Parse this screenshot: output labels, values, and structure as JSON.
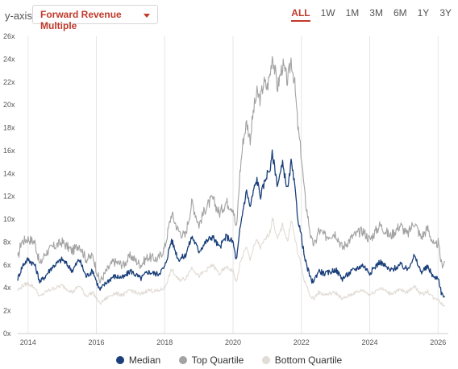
{
  "header": {
    "yaxis_label": "y-axis:",
    "metric_select": {
      "value": "Forward Revenue Multiple",
      "icon": "caret-down-icon"
    },
    "ranges": [
      "ALL",
      "1W",
      "1M",
      "3M",
      "6M",
      "1Y",
      "3Y"
    ],
    "active_range": "ALL"
  },
  "chart_data": {
    "type": "line",
    "title": "",
    "xlabel": "",
    "ylabel": "",
    "ylim": [
      0,
      26
    ],
    "xlim": [
      2013.7,
      2026.3
    ],
    "y_ticks": [
      0,
      2,
      4,
      6,
      8,
      10,
      12,
      14,
      16,
      18,
      20,
      22,
      24,
      26
    ],
    "y_tick_labels": [
      "0x",
      "2x",
      "4x",
      "6x",
      "8x",
      "10x",
      "12x",
      "14x",
      "16x",
      "18x",
      "20x",
      "22x",
      "24x",
      "26x"
    ],
    "x_ticks": [
      2014,
      2016,
      2018,
      2020,
      2022,
      2024,
      2026
    ],
    "x_tick_labels": [
      "2014",
      "2016",
      "2018",
      "2020",
      "2022",
      "2024",
      "2026"
    ],
    "grid": "vertical",
    "legend_position": "bottom",
    "series": [
      {
        "name": "Top Quartile",
        "color": "#a3a3a3",
        "x": [
          2013.7,
          2013.8,
          2014.0,
          2014.2,
          2014.35,
          2014.5,
          2014.7,
          2015.0,
          2015.3,
          2015.5,
          2015.7,
          2015.9,
          2016.0,
          2016.1,
          2016.3,
          2016.5,
          2016.8,
          2017.0,
          2017.3,
          2017.5,
          2017.8,
          2018.0,
          2018.2,
          2018.4,
          2018.6,
          2018.8,
          2019.0,
          2019.2,
          2019.4,
          2019.6,
          2019.8,
          2020.0,
          2020.1,
          2020.2,
          2020.3,
          2020.4,
          2020.5,
          2020.6,
          2020.7,
          2020.8,
          2020.9,
          2021.0,
          2021.1,
          2021.15,
          2021.3,
          2021.45,
          2021.6,
          2021.7,
          2021.8,
          2021.9,
          2022.0,
          2022.1,
          2022.2,
          2022.3,
          2022.4,
          2022.5,
          2022.7,
          2023.0,
          2023.2,
          2023.5,
          2023.8,
          2024.0,
          2024.3,
          2024.6,
          2024.9,
          2025.1,
          2025.3,
          2025.5,
          2025.7,
          2025.9,
          2026.0,
          2026.1,
          2026.2
        ],
        "y": [
          6.5,
          8.0,
          8.3,
          8.0,
          6.0,
          7.0,
          7.5,
          8.0,
          7.2,
          7.8,
          6.5,
          6.8,
          5.6,
          4.5,
          5.5,
          6.3,
          6.0,
          6.8,
          6.0,
          6.7,
          6.5,
          7.5,
          10.5,
          9.0,
          8.5,
          11.5,
          9.5,
          11.0,
          11.8,
          10.5,
          11.5,
          11.0,
          9.0,
          14.0,
          17.0,
          18.5,
          17.0,
          19.5,
          21.0,
          20.5,
          22.0,
          21.5,
          23.0,
          24.5,
          21.5,
          23.5,
          22.0,
          24.0,
          22.0,
          18.0,
          15.5,
          12.0,
          10.0,
          8.0,
          7.8,
          9.0,
          8.5,
          8.8,
          7.5,
          8.5,
          9.0,
          8.2,
          9.5,
          8.5,
          9.5,
          8.6,
          9.8,
          8.4,
          9.2,
          7.5,
          8.0,
          6.0,
          6.3
        ]
      },
      {
        "name": "Median",
        "color": "#1a3f7a",
        "x": [
          2013.7,
          2013.85,
          2014.0,
          2014.2,
          2014.35,
          2014.5,
          2014.7,
          2015.0,
          2015.3,
          2015.5,
          2015.7,
          2015.9,
          2016.0,
          2016.1,
          2016.3,
          2016.5,
          2016.8,
          2017.0,
          2017.3,
          2017.5,
          2017.8,
          2018.0,
          2018.2,
          2018.4,
          2018.6,
          2018.8,
          2019.0,
          2019.2,
          2019.4,
          2019.6,
          2019.8,
          2020.0,
          2020.1,
          2020.2,
          2020.3,
          2020.4,
          2020.5,
          2020.6,
          2020.7,
          2020.8,
          2020.9,
          2021.0,
          2021.1,
          2021.15,
          2021.3,
          2021.45,
          2021.6,
          2021.7,
          2021.8,
          2021.9,
          2022.0,
          2022.1,
          2022.2,
          2022.3,
          2022.4,
          2022.5,
          2022.7,
          2023.0,
          2023.2,
          2023.5,
          2023.8,
          2024.0,
          2024.3,
          2024.6,
          2024.9,
          2025.1,
          2025.3,
          2025.5,
          2025.7,
          2025.9,
          2026.0,
          2026.1,
          2026.2
        ],
        "y": [
          4.8,
          6.0,
          6.5,
          6.0,
          4.5,
          5.0,
          5.8,
          6.5,
          5.5,
          6.5,
          5.0,
          5.5,
          4.6,
          3.8,
          4.5,
          5.0,
          4.9,
          5.5,
          4.8,
          5.4,
          5.2,
          5.8,
          8.2,
          6.5,
          6.8,
          8.5,
          7.2,
          8.0,
          8.5,
          7.5,
          8.5,
          8.0,
          6.3,
          9.0,
          11.0,
          12.5,
          11.0,
          12.5,
          13.5,
          12.0,
          13.0,
          14.0,
          14.5,
          15.8,
          13.0,
          14.8,
          12.5,
          15.0,
          13.0,
          10.0,
          8.5,
          6.5,
          5.5,
          4.5,
          4.8,
          5.5,
          5.2,
          5.6,
          4.8,
          5.5,
          6.0,
          5.3,
          6.3,
          5.5,
          6.0,
          5.6,
          6.8,
          5.4,
          5.8,
          4.8,
          5.0,
          3.5,
          3.2
        ]
      },
      {
        "name": "Bottom Quartile",
        "color": "#e2dcd6",
        "x": [
          2013.7,
          2013.85,
          2014.0,
          2014.2,
          2014.35,
          2014.5,
          2014.7,
          2015.0,
          2015.3,
          2015.5,
          2015.7,
          2015.9,
          2016.0,
          2016.1,
          2016.3,
          2016.5,
          2016.8,
          2017.0,
          2017.3,
          2017.5,
          2017.8,
          2018.0,
          2018.2,
          2018.4,
          2018.6,
          2018.8,
          2019.0,
          2019.2,
          2019.4,
          2019.6,
          2019.8,
          2020.0,
          2020.1,
          2020.2,
          2020.3,
          2020.4,
          2020.5,
          2020.6,
          2020.7,
          2020.8,
          2020.9,
          2021.0,
          2021.1,
          2021.15,
          2021.3,
          2021.45,
          2021.6,
          2021.7,
          2021.8,
          2021.9,
          2022.0,
          2022.1,
          2022.2,
          2022.3,
          2022.4,
          2022.5,
          2022.7,
          2023.0,
          2023.2,
          2023.5,
          2023.8,
          2024.0,
          2024.3,
          2024.6,
          2024.9,
          2025.1,
          2025.3,
          2025.5,
          2025.7,
          2025.9,
          2026.0,
          2026.1,
          2026.2
        ],
        "y": [
          3.8,
          4.2,
          4.4,
          4.0,
          3.2,
          3.6,
          3.9,
          4.2,
          3.6,
          4.2,
          3.3,
          3.6,
          3.1,
          2.6,
          3.1,
          3.5,
          3.4,
          3.8,
          3.4,
          3.8,
          3.7,
          4.0,
          5.6,
          4.7,
          4.8,
          5.8,
          5.0,
          5.5,
          6.0,
          5.2,
          5.8,
          5.5,
          4.4,
          6.0,
          7.0,
          7.5,
          6.5,
          7.5,
          8.2,
          7.5,
          8.0,
          8.5,
          9.0,
          10.2,
          8.2,
          9.5,
          8.0,
          10.0,
          8.5,
          7.0,
          5.8,
          4.5,
          3.8,
          3.0,
          3.2,
          3.6,
          3.4,
          3.6,
          3.0,
          3.5,
          3.8,
          3.4,
          4.0,
          3.5,
          3.8,
          3.6,
          4.2,
          3.4,
          3.7,
          3.0,
          3.1,
          2.6,
          2.4
        ]
      }
    ]
  }
}
